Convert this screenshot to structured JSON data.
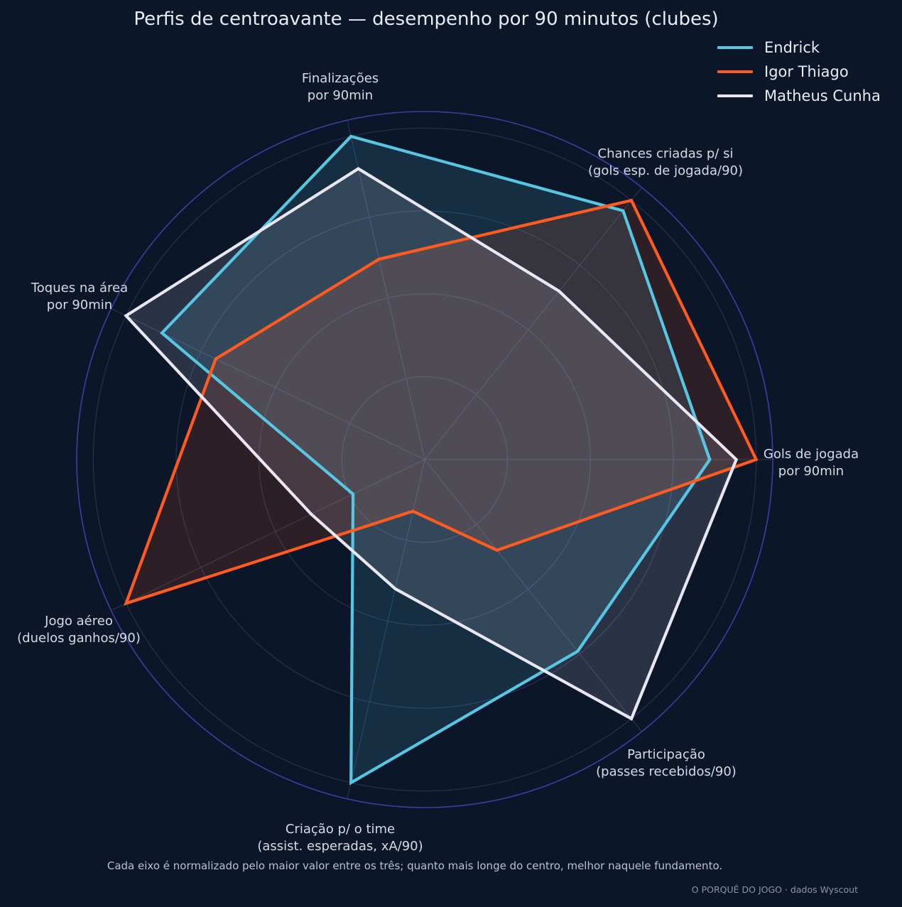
{
  "title": "Perfis de centroavante — desempenho por 90 minutos (clubes)",
  "caption": "Cada eixo é normalizado pelo maior valor entre os três; quanto mais longe do centro, melhor naquele fundamento.",
  "credit": "O PORQUÊ DO JOGO · dados Wyscout",
  "colors": {
    "background": "#0b1628",
    "grid": "#2a3560",
    "outer_ring": "#3d3fa0",
    "endrick": "#57c6e3",
    "igor": "#ff5a1f",
    "matheus": "#e9e6f5"
  },
  "chart_data": {
    "type": "radar",
    "title": "Perfis de centroavante — desempenho por 90 minutos (clubes)",
    "axes": [
      [
        "Gols de jogada",
        "por 90min"
      ],
      [
        "Chances criadas p/ si",
        "(gols esp. de jogada/90)"
      ],
      [
        "Finalizações",
        "por 90min"
      ],
      [
        "Toques na área",
        "por 90min"
      ],
      [
        "Jogo aéreo",
        "(duelos ganhos/90)"
      ],
      [
        "Criação p/ o time",
        "(assist. esperadas, xA/90)"
      ],
      [
        "Participação",
        "(passes recebidos/90)"
      ]
    ],
    "rlim": [
      0,
      1.05
    ],
    "grid_rings": [
      0.25,
      0.5,
      0.75,
      1.0
    ],
    "series": [
      {
        "name": "Endrick",
        "color": "#57c6e3",
        "values": [
          0.86,
          0.96,
          1.0,
          0.88,
          0.24,
          1.0,
          0.74
        ]
      },
      {
        "name": "Igor Thiago",
        "color": "#ff5a1f",
        "values": [
          1.0,
          1.0,
          0.62,
          0.7,
          1.0,
          0.16,
          0.35
        ]
      },
      {
        "name": "Matheus Cunha",
        "color": "#e9e6f5",
        "values": [
          0.94,
          0.65,
          0.9,
          1.0,
          0.38,
          0.4,
          1.0
        ]
      }
    ],
    "legend_position": "top-right"
  }
}
